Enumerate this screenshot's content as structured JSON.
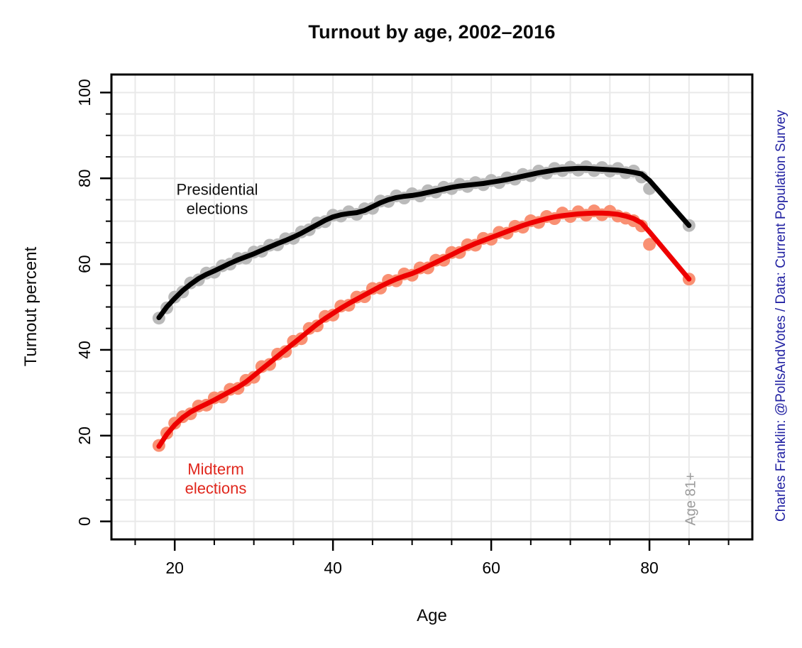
{
  "page": {
    "background": "#ffffff"
  },
  "chart_data": {
    "type": "scatter",
    "title": "Turnout by age, 2002–2016",
    "xlabel": "Age",
    "ylabel": "Turnout percent",
    "x_domain": [
      12,
      93
    ],
    "y_domain": [
      -4.2,
      104.2
    ],
    "x_major_ticks": [
      20,
      40,
      60,
      80
    ],
    "y_major_ticks": [
      0,
      20,
      40,
      60,
      80,
      100
    ],
    "minor_tick_step": 5,
    "grid": true,
    "grid_step": 5,
    "grid_color": "#E9E9E9",
    "axis_color": "#000000",
    "caption": "Charles Franklin: @PollsAndVotes / Data: Current Population Survey",
    "caption_color": "#2121A2",
    "age_note": "Age 81+",
    "age_note_color": "#9B9B9B",
    "age_note_x": 84.5,
    "annotations": [
      {
        "id": "presidential-label",
        "lines": [
          "Presidential",
          "elections"
        ],
        "color": "#111111"
      },
      {
        "id": "midterm-label",
        "lines": [
          "Midterm",
          "elections"
        ],
        "color": "#E0261C"
      }
    ],
    "series": [
      {
        "name": "Presidential elections",
        "line_color": "#000000",
        "point_color": "#BABABA",
        "line": [
          [
            18,
            47.5
          ],
          [
            19,
            50.0
          ],
          [
            20,
            52.0
          ],
          [
            21,
            53.8
          ],
          [
            22,
            55.3
          ],
          [
            23,
            56.6
          ],
          [
            24,
            57.6
          ],
          [
            25,
            58.4
          ],
          [
            26,
            59.3
          ],
          [
            27,
            60.2
          ],
          [
            28,
            61.0
          ],
          [
            29,
            61.7
          ],
          [
            30,
            62.4
          ],
          [
            31,
            63.2
          ],
          [
            32,
            64.0
          ],
          [
            33,
            64.8
          ],
          [
            34,
            65.5
          ],
          [
            35,
            66.3
          ],
          [
            36,
            67.2
          ],
          [
            37,
            68.2
          ],
          [
            38,
            69.2
          ],
          [
            39,
            70.2
          ],
          [
            40,
            71.0
          ],
          [
            41,
            71.5
          ],
          [
            42,
            71.8
          ],
          [
            43,
            72.0
          ],
          [
            44,
            72.5
          ],
          [
            45,
            73.4
          ],
          [
            46,
            74.3
          ],
          [
            47,
            75.0
          ],
          [
            48,
            75.5
          ],
          [
            49,
            75.8
          ],
          [
            50,
            76.0
          ],
          [
            51,
            76.3
          ],
          [
            52,
            76.7
          ],
          [
            53,
            77.1
          ],
          [
            54,
            77.5
          ],
          [
            55,
            77.9
          ],
          [
            56,
            78.2
          ],
          [
            57,
            78.4
          ],
          [
            58,
            78.6
          ],
          [
            59,
            78.8
          ],
          [
            60,
            79.1
          ],
          [
            61,
            79.4
          ],
          [
            62,
            79.7
          ],
          [
            63,
            80.1
          ],
          [
            64,
            80.5
          ],
          [
            65,
            80.9
          ],
          [
            66,
            81.3
          ],
          [
            67,
            81.6
          ],
          [
            68,
            81.9
          ],
          [
            69,
            82.1
          ],
          [
            70,
            82.2
          ],
          [
            71,
            82.3
          ],
          [
            72,
            82.3
          ],
          [
            73,
            82.2
          ],
          [
            74,
            82.1
          ],
          [
            75,
            82.0
          ],
          [
            76,
            81.9
          ],
          [
            77,
            81.7
          ],
          [
            78,
            81.4
          ],
          [
            79,
            81.0
          ],
          [
            80,
            79.5
          ],
          [
            85,
            69.0
          ]
        ],
        "points": [
          [
            18,
            47.4
          ],
          [
            19,
            49.8
          ],
          [
            20,
            52.3
          ],
          [
            21,
            53.5
          ],
          [
            22,
            55.6
          ],
          [
            23,
            56.3
          ],
          [
            24,
            57.9
          ],
          [
            25,
            58.1
          ],
          [
            26,
            59.6
          ],
          [
            27,
            60.0
          ],
          [
            28,
            61.3
          ],
          [
            29,
            61.4
          ],
          [
            30,
            62.8
          ],
          [
            31,
            63.0
          ],
          [
            32,
            64.4
          ],
          [
            33,
            64.5
          ],
          [
            34,
            65.9
          ],
          [
            35,
            66.0
          ],
          [
            36,
            67.5
          ],
          [
            37,
            68.0
          ],
          [
            38,
            69.6
          ],
          [
            39,
            69.9
          ],
          [
            40,
            71.4
          ],
          [
            41,
            71.2
          ],
          [
            42,
            72.2
          ],
          [
            43,
            71.6
          ],
          [
            44,
            72.9
          ],
          [
            45,
            73.0
          ],
          [
            46,
            74.7
          ],
          [
            47,
            74.6
          ],
          [
            48,
            75.9
          ],
          [
            49,
            75.4
          ],
          [
            50,
            76.4
          ],
          [
            51,
            75.9
          ],
          [
            52,
            77.1
          ],
          [
            53,
            76.8
          ],
          [
            54,
            77.9
          ],
          [
            55,
            77.6
          ],
          [
            56,
            78.6
          ],
          [
            57,
            78.1
          ],
          [
            58,
            79.0
          ],
          [
            59,
            78.5
          ],
          [
            60,
            79.5
          ],
          [
            61,
            79.0
          ],
          [
            62,
            80.1
          ],
          [
            63,
            79.8
          ],
          [
            64,
            80.9
          ],
          [
            65,
            80.6
          ],
          [
            66,
            81.7
          ],
          [
            67,
            81.2
          ],
          [
            68,
            82.3
          ],
          [
            69,
            81.8
          ],
          [
            70,
            82.6
          ],
          [
            71,
            81.9
          ],
          [
            72,
            82.7
          ],
          [
            73,
            81.8
          ],
          [
            74,
            82.5
          ],
          [
            75,
            81.7
          ],
          [
            76,
            82.3
          ],
          [
            77,
            81.3
          ],
          [
            78,
            81.7
          ],
          [
            79,
            80.3
          ],
          [
            80,
            77.6
          ],
          [
            85,
            69.0
          ]
        ]
      },
      {
        "name": "Midterm elections",
        "line_color": "#EE0000",
        "point_color": "#F99073",
        "line": [
          [
            18,
            17.5
          ],
          [
            19,
            20.3
          ],
          [
            20,
            22.5
          ],
          [
            21,
            24.2
          ],
          [
            22,
            25.5
          ],
          [
            23,
            26.5
          ],
          [
            24,
            27.4
          ],
          [
            25,
            28.3
          ],
          [
            26,
            29.3
          ],
          [
            27,
            30.3
          ],
          [
            28,
            31.3
          ],
          [
            29,
            32.5
          ],
          [
            30,
            34.0
          ],
          [
            31,
            35.5
          ],
          [
            32,
            37.0
          ],
          [
            33,
            38.5
          ],
          [
            34,
            40.0
          ],
          [
            35,
            41.5
          ],
          [
            36,
            43.0
          ],
          [
            37,
            44.5
          ],
          [
            38,
            46.0
          ],
          [
            39,
            47.3
          ],
          [
            40,
            48.5
          ],
          [
            41,
            49.7
          ],
          [
            42,
            50.8
          ],
          [
            43,
            51.8
          ],
          [
            44,
            52.8
          ],
          [
            45,
            53.8
          ],
          [
            46,
            54.8
          ],
          [
            47,
            55.7
          ],
          [
            48,
            56.5
          ],
          [
            49,
            57.2
          ],
          [
            50,
            57.8
          ],
          [
            51,
            58.6
          ],
          [
            52,
            59.5
          ],
          [
            53,
            60.4
          ],
          [
            54,
            61.3
          ],
          [
            55,
            62.2
          ],
          [
            56,
            63.1
          ],
          [
            57,
            64.0
          ],
          [
            58,
            64.8
          ],
          [
            59,
            65.5
          ],
          [
            60,
            66.2
          ],
          [
            61,
            66.9
          ],
          [
            62,
            67.6
          ],
          [
            63,
            68.3
          ],
          [
            64,
            69.0
          ],
          [
            65,
            69.6
          ],
          [
            66,
            70.1
          ],
          [
            67,
            70.6
          ],
          [
            68,
            71.0
          ],
          [
            69,
            71.3
          ],
          [
            70,
            71.5
          ],
          [
            71,
            71.7
          ],
          [
            72,
            71.8
          ],
          [
            73,
            71.9
          ],
          [
            74,
            71.9
          ],
          [
            75,
            71.8
          ],
          [
            76,
            71.6
          ],
          [
            77,
            71.2
          ],
          [
            78,
            70.6
          ],
          [
            79,
            69.6
          ],
          [
            80,
            67.5
          ],
          [
            85,
            56.5
          ]
        ],
        "points": [
          [
            18,
            17.7
          ],
          [
            19,
            20.6
          ],
          [
            20,
            22.9
          ],
          [
            21,
            24.4
          ],
          [
            22,
            25.1
          ],
          [
            23,
            26.9
          ],
          [
            24,
            27.1
          ],
          [
            25,
            28.8
          ],
          [
            26,
            29.0
          ],
          [
            27,
            30.8
          ],
          [
            28,
            31.0
          ],
          [
            29,
            32.9
          ],
          [
            30,
            33.6
          ],
          [
            31,
            36.1
          ],
          [
            32,
            36.6
          ],
          [
            33,
            39.0
          ],
          [
            34,
            39.6
          ],
          [
            35,
            42.0
          ],
          [
            36,
            42.6
          ],
          [
            37,
            45.0
          ],
          [
            38,
            45.6
          ],
          [
            39,
            47.8
          ],
          [
            40,
            48.1
          ],
          [
            41,
            50.2
          ],
          [
            42,
            50.4
          ],
          [
            43,
            52.3
          ],
          [
            44,
            52.4
          ],
          [
            45,
            54.3
          ],
          [
            46,
            54.4
          ],
          [
            47,
            56.2
          ],
          [
            48,
            56.1
          ],
          [
            49,
            57.7
          ],
          [
            50,
            57.4
          ],
          [
            51,
            59.1
          ],
          [
            52,
            59.1
          ],
          [
            53,
            60.9
          ],
          [
            54,
            60.9
          ],
          [
            55,
            62.7
          ],
          [
            56,
            62.7
          ],
          [
            57,
            64.5
          ],
          [
            58,
            64.4
          ],
          [
            59,
            66.0
          ],
          [
            60,
            65.8
          ],
          [
            61,
            67.4
          ],
          [
            62,
            67.2
          ],
          [
            63,
            68.8
          ],
          [
            64,
            68.6
          ],
          [
            65,
            70.1
          ],
          [
            66,
            69.7
          ],
          [
            67,
            71.1
          ],
          [
            68,
            70.6
          ],
          [
            69,
            71.9
          ],
          [
            70,
            71.1
          ],
          [
            71,
            72.2
          ],
          [
            72,
            71.4
          ],
          [
            73,
            72.4
          ],
          [
            74,
            71.5
          ],
          [
            75,
            72.3
          ],
          [
            76,
            71.2
          ],
          [
            77,
            70.7
          ],
          [
            78,
            70.1
          ],
          [
            79,
            68.9
          ],
          [
            80,
            64.6
          ],
          [
            85,
            56.5
          ]
        ]
      }
    ]
  }
}
